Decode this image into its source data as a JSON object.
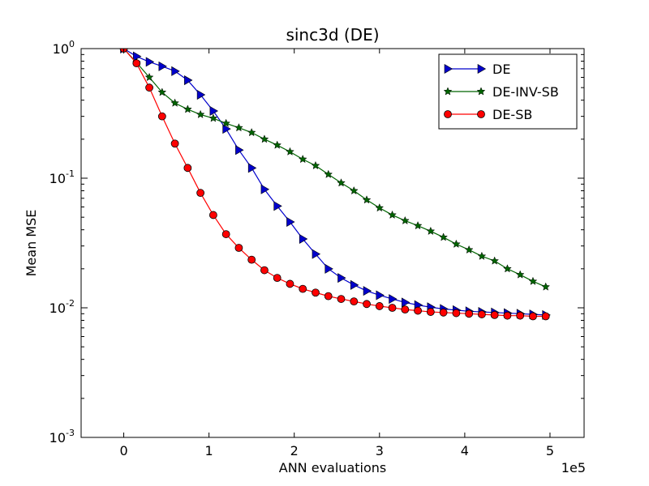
{
  "chart_data": {
    "type": "line",
    "title": "sinc3d (DE)",
    "xlabel": "ANN evaluations",
    "ylabel": "Mean MSE",
    "x_offset_label": "1e5",
    "xscale": "linear",
    "yscale": "log",
    "xlim": [
      -0.5,
      5.4
    ],
    "ylim": [
      0.001,
      1
    ],
    "xticks": [
      0,
      1,
      2,
      3,
      4,
      5
    ],
    "xtick_labels": [
      "0",
      "1",
      "2",
      "3",
      "4",
      "5"
    ],
    "yticks": [
      {
        "value": 1,
        "base": "10",
        "exp": "0"
      },
      {
        "value": 0.1,
        "base": "10",
        "exp": "-1"
      },
      {
        "value": 0.01,
        "base": "10",
        "exp": "-2"
      },
      {
        "value": 0.001,
        "base": "10",
        "exp": "-3"
      }
    ],
    "grid": false,
    "legend_position": "top-right",
    "series": [
      {
        "name": "DE",
        "color": "#0000cc",
        "marker": "triangle-right",
        "x": [
          0,
          0.15,
          0.3,
          0.45,
          0.6,
          0.75,
          0.9,
          1.05,
          1.2,
          1.35,
          1.5,
          1.65,
          1.8,
          1.95,
          2.1,
          2.25,
          2.4,
          2.55,
          2.7,
          2.85,
          3.0,
          3.15,
          3.3,
          3.45,
          3.6,
          3.75,
          3.9,
          4.05,
          4.2,
          4.35,
          4.5,
          4.65,
          4.8,
          4.95
        ],
        "y": [
          1.0,
          0.87,
          0.79,
          0.73,
          0.67,
          0.57,
          0.44,
          0.33,
          0.24,
          0.165,
          0.12,
          0.082,
          0.061,
          0.046,
          0.034,
          0.026,
          0.02,
          0.017,
          0.015,
          0.0135,
          0.0125,
          0.0117,
          0.011,
          0.0105,
          0.0101,
          0.0098,
          0.0096,
          0.0094,
          0.0093,
          0.0092,
          0.0091,
          0.009,
          0.0089,
          0.0088
        ]
      },
      {
        "name": "DE-INV-SB",
        "color": "#006400",
        "marker": "star",
        "x": [
          0,
          0.15,
          0.3,
          0.45,
          0.6,
          0.75,
          0.9,
          1.05,
          1.2,
          1.35,
          1.5,
          1.65,
          1.8,
          1.95,
          2.1,
          2.25,
          2.4,
          2.55,
          2.7,
          2.85,
          3.0,
          3.15,
          3.3,
          3.45,
          3.6,
          3.75,
          3.9,
          4.05,
          4.2,
          4.35,
          4.5,
          4.65,
          4.8,
          4.95
        ],
        "y": [
          1.0,
          0.78,
          0.6,
          0.46,
          0.38,
          0.34,
          0.31,
          0.29,
          0.265,
          0.245,
          0.225,
          0.2,
          0.18,
          0.16,
          0.14,
          0.125,
          0.107,
          0.092,
          0.08,
          0.068,
          0.059,
          0.052,
          0.047,
          0.043,
          0.039,
          0.035,
          0.031,
          0.028,
          0.025,
          0.023,
          0.02,
          0.018,
          0.016,
          0.0145
        ]
      },
      {
        "name": "DE-SB",
        "color": "#ff0000",
        "marker": "circle",
        "x": [
          0,
          0.15,
          0.3,
          0.45,
          0.6,
          0.75,
          0.9,
          1.05,
          1.2,
          1.35,
          1.5,
          1.65,
          1.8,
          1.95,
          2.1,
          2.25,
          2.4,
          2.55,
          2.7,
          2.85,
          3.0,
          3.15,
          3.3,
          3.45,
          3.6,
          3.75,
          3.9,
          4.05,
          4.2,
          4.35,
          4.5,
          4.65,
          4.8,
          4.95
        ],
        "y": [
          1.0,
          0.77,
          0.5,
          0.3,
          0.185,
          0.12,
          0.077,
          0.052,
          0.037,
          0.029,
          0.0235,
          0.0195,
          0.017,
          0.0153,
          0.014,
          0.0131,
          0.0123,
          0.0117,
          0.0112,
          0.0107,
          0.0103,
          0.01,
          0.0097,
          0.0095,
          0.0093,
          0.0092,
          0.0091,
          0.009,
          0.0089,
          0.0088,
          0.0087,
          0.0087,
          0.0086,
          0.0086
        ]
      }
    ]
  }
}
